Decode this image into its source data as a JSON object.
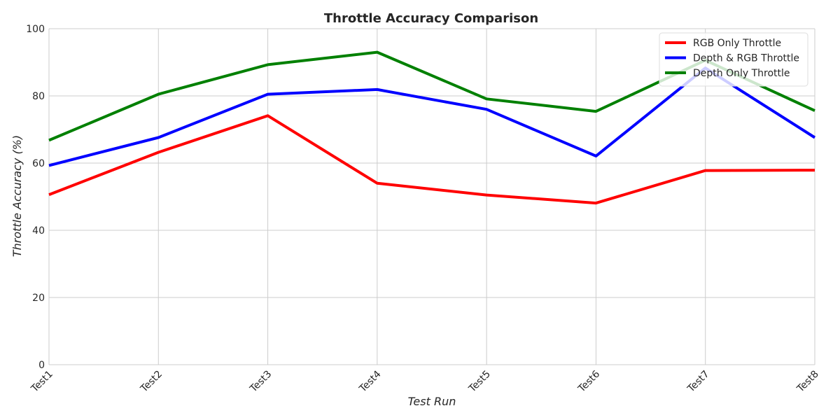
{
  "chart_data": {
    "type": "line",
    "title": "Throttle Accuracy Comparison",
    "xlabel": "Test Run",
    "ylabel": "Throttle Accuracy (%)",
    "categories": [
      "Test1",
      "Test2",
      "Test3",
      "Test4",
      "Test5",
      "Test6",
      "Test7",
      "Test8"
    ],
    "ylim": [
      0,
      100
    ],
    "yticks": [
      0,
      20,
      40,
      60,
      80,
      100
    ],
    "grid": true,
    "legend_position": "top-right",
    "series": [
      {
        "name": "RGB Only Throttle",
        "color": "#ff0000",
        "values": [
          50.6,
          63.2,
          74.1,
          54.0,
          50.5,
          48.1,
          57.8,
          57.9
        ]
      },
      {
        "name": "Depth & RGB Throttle",
        "color": "#0000ff",
        "values": [
          59.3,
          67.6,
          80.5,
          81.9,
          76.0,
          62.1,
          88.3,
          67.6
        ]
      },
      {
        "name": "Depth Only Throttle",
        "color": "#008000",
        "values": [
          66.8,
          80.5,
          89.3,
          93.0,
          79.1,
          75.4,
          90.6,
          75.6
        ]
      }
    ]
  }
}
